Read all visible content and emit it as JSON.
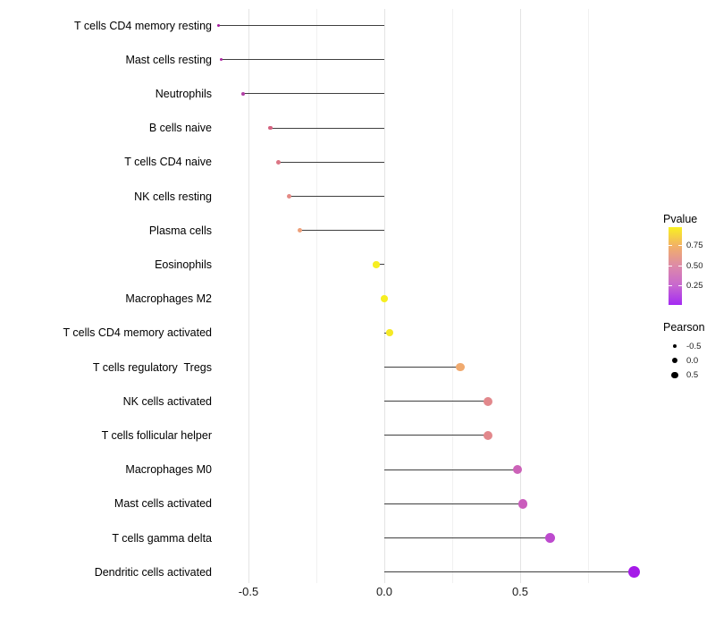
{
  "chart_data": {
    "type": "lollipop",
    "orientation": "horizontal",
    "title": "",
    "xlabel": "",
    "ylabel": "",
    "xlim": [
      -0.69,
      1.0
    ],
    "x_ticks": [
      {
        "label": "-0.5",
        "value": -0.5
      },
      {
        "label": "0.0",
        "value": 0.0
      },
      {
        "label": "0.5",
        "value": 0.5
      }
    ],
    "grid": {
      "major_values": [
        -0.5,
        0.0,
        0.5
      ],
      "minor_values": [
        -0.25,
        0.25,
        0.75
      ]
    },
    "stem_color": "#3f3f3f",
    "points": [
      {
        "label": "T cells CD4 memory resting",
        "pearson": -0.61,
        "color": "#a21c9a"
      },
      {
        "label": "Mast cells resting",
        "pearson": -0.6,
        "color": "#aa24a0"
      },
      {
        "label": "Neutrophils",
        "pearson": -0.52,
        "color": "#b23fa6"
      },
      {
        "label": "B cells naive",
        "pearson": -0.42,
        "color": "#d4617f"
      },
      {
        "label": "T cells CD4 naive",
        "pearson": -0.39,
        "color": "#db7584"
      },
      {
        "label": "NK cells resting",
        "pearson": -0.35,
        "color": "#e48a85"
      },
      {
        "label": "Plasma cells",
        "pearson": -0.31,
        "color": "#eda07b"
      },
      {
        "label": "Eosinophils",
        "pearson": -0.03,
        "color": "#f6ee21"
      },
      {
        "label": "Macrophages M2",
        "pearson": 0.0,
        "color": "#f6ee21"
      },
      {
        "label": "T cells CD4 memory activated",
        "pearson": 0.02,
        "color": "#f5e926"
      },
      {
        "label": "T cells regulatory  Tregs",
        "pearson": 0.28,
        "color": "#f0aa6f"
      },
      {
        "label": "NK cells activated",
        "pearson": 0.38,
        "color": "#e2888c"
      },
      {
        "label": "T cells follicular helper",
        "pearson": 0.38,
        "color": "#e2888c"
      },
      {
        "label": "Macrophages M0",
        "pearson": 0.49,
        "color": "#cc62b8"
      },
      {
        "label": "Mast cells activated",
        "pearson": 0.51,
        "color": "#ca5cbc"
      },
      {
        "label": "T cells gamma delta",
        "pearson": 0.61,
        "color": "#bd4ace"
      },
      {
        "label": "Dendritic cells activated",
        "pearson": 0.92,
        "color": "#a51ae8"
      }
    ],
    "legend_pvalue": {
      "title": "Pvalue",
      "tick_labels_top_to_bottom": [
        "0.75",
        "0.50",
        "0.25"
      ],
      "gradient_bottom_to_top": [
        {
          "pos": 0.0,
          "color": "#a42af2"
        },
        {
          "pos": 0.245,
          "color": "#c767d0"
        },
        {
          "pos": 0.502,
          "color": "#dd8aa8"
        },
        {
          "pos": 0.762,
          "color": "#f2b166"
        },
        {
          "pos": 1.0,
          "color": "#f9f121"
        }
      ]
    },
    "legend_pearson": {
      "title": "Pearson",
      "items": [
        {
          "label": "-0.5"
        },
        {
          "label": "0.0"
        },
        {
          "label": "0.5"
        }
      ]
    }
  }
}
